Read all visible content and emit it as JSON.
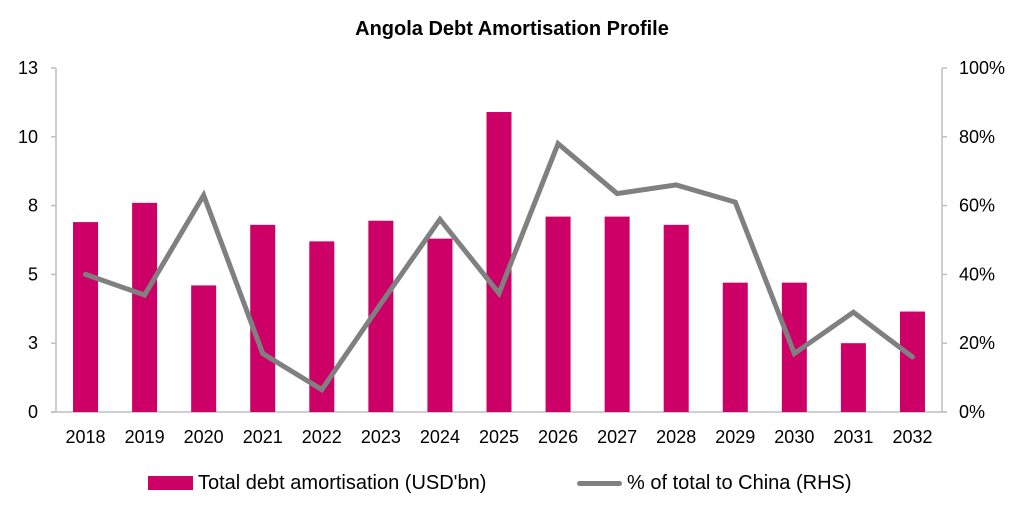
{
  "colors": {
    "bar": "#cc0066",
    "line": "#808080",
    "axis": "#bfbfbf",
    "text": "#000000"
  },
  "chart_data": {
    "type": "bar",
    "title": "Angola Debt Amortisation Profile",
    "xlabel": "",
    "ylabel": "",
    "categories": [
      "2018",
      "2019",
      "2020",
      "2021",
      "2022",
      "2023",
      "2024",
      "2025",
      "2026",
      "2027",
      "2028",
      "2029",
      "2030",
      "2031",
      "2032"
    ],
    "series": [
      {
        "name": "Total debt amortisation (USD'bn)",
        "type": "bar",
        "axis": "left",
        "values": [
          6.9,
          7.6,
          4.6,
          6.8,
          6.2,
          6.95,
          6.3,
          10.9,
          7.1,
          7.1,
          6.8,
          4.7,
          4.7,
          2.5,
          3.65
        ]
      },
      {
        "name": "% of total to China (RHS)",
        "type": "line",
        "axis": "right",
        "values": [
          40,
          34,
          63,
          17,
          6.5,
          31.5,
          56,
          34.5,
          78,
          63.5,
          66,
          61,
          17,
          29,
          16
        ]
      }
    ],
    "ylim": [
      0,
      12.5
    ],
    "yticks": [
      0,
      2.5,
      5,
      7.5,
      10,
      12.5
    ],
    "ytick_labels": [
      "0",
      "3",
      "5",
      "8",
      "10",
      "13"
    ],
    "y2lim": [
      0,
      100
    ],
    "y2ticks": [
      0,
      20,
      40,
      60,
      80,
      100
    ],
    "y2tick_labels": [
      "0%",
      "20%",
      "40%",
      "60%",
      "80%",
      "100%"
    ],
    "grid": false,
    "legend": "bottom"
  }
}
